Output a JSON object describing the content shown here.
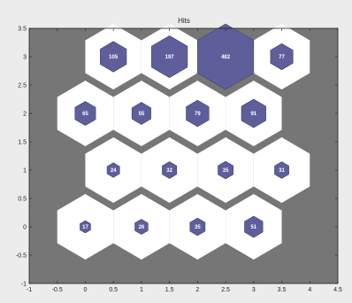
{
  "chart_data": {
    "type": "hexbin-hits",
    "title": "Hits",
    "xlim": [
      -1,
      4.5
    ],
    "ylim": [
      -1,
      3.5
    ],
    "xticks": [
      "-1",
      "-0.5",
      "0",
      "0.5",
      "1",
      "1.5",
      "2",
      "2.5",
      "3",
      "3.5",
      "4",
      "4.5"
    ],
    "yticks": [
      "-1",
      "-0.5",
      "0",
      "0.5",
      "1",
      "1.5",
      "2",
      "2.5",
      "3",
      "3.5"
    ],
    "grid": false,
    "max_hits": 482,
    "cells": [
      {
        "x": 0,
        "y": 0,
        "hits": 17
      },
      {
        "x": 1,
        "y": 0,
        "hits": 26
      },
      {
        "x": 2,
        "y": 0,
        "hits": 35
      },
      {
        "x": 3,
        "y": 0,
        "hits": 51
      },
      {
        "x": 0.5,
        "y": 1,
        "hits": 24
      },
      {
        "x": 1.5,
        "y": 1,
        "hits": 32
      },
      {
        "x": 2.5,
        "y": 1,
        "hits": 35
      },
      {
        "x": 3.5,
        "y": 1,
        "hits": 31
      },
      {
        "x": 0,
        "y": 2,
        "hits": 65
      },
      {
        "x": 1,
        "y": 2,
        "hits": 55
      },
      {
        "x": 2,
        "y": 2,
        "hits": 79
      },
      {
        "x": 3,
        "y": 2,
        "hits": 91
      },
      {
        "x": 0.5,
        "y": 3,
        "hits": 105
      },
      {
        "x": 1.5,
        "y": 3,
        "hits": 197
      },
      {
        "x": 2.5,
        "y": 3,
        "hits": 482
      },
      {
        "x": 3.5,
        "y": 3,
        "hits": 77
      }
    ],
    "colors": {
      "plot_background": "#767676",
      "cell_background": "#ffffff",
      "hit_fill": "#5e5f9a",
      "hit_stroke": "#3d3e70",
      "label": "#ffffff"
    }
  }
}
